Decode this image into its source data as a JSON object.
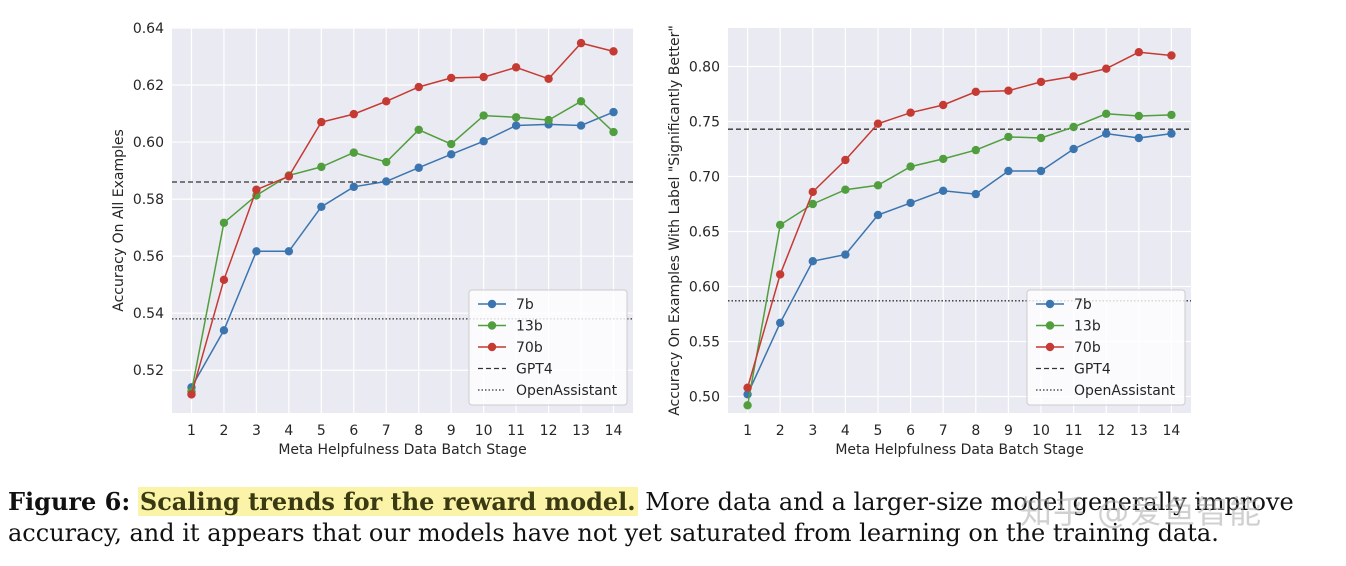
{
  "chart_data": [
    {
      "type": "line",
      "xlabel": "Meta Helpfulness Data Batch Stage",
      "ylabel": "Accuracy On All Examples",
      "x": [
        1,
        2,
        3,
        4,
        5,
        6,
        7,
        8,
        9,
        10,
        11,
        12,
        13,
        14
      ],
      "xlim": [
        0.4,
        14.6
      ],
      "ylim": [
        0.505,
        0.64
      ],
      "yticks": [
        0.52,
        0.54,
        0.56,
        0.58,
        0.6,
        0.62,
        0.64
      ],
      "ytick_labels": [
        "0.52",
        "0.54",
        "0.56",
        "0.58",
        "0.60",
        "0.62",
        "0.64"
      ],
      "grid": true,
      "legend": "lower-right",
      "series": [
        {
          "name": "7b",
          "color": "#3b75af",
          "values": [
            0.514,
            0.534,
            0.5617,
            0.5617,
            0.5773,
            0.5843,
            0.5862,
            0.591,
            0.5957,
            0.6003,
            0.6058,
            0.6062,
            0.6058,
            0.6105
          ]
        },
        {
          "name": "13b",
          "color": "#519e3e",
          "values": [
            0.5125,
            0.5717,
            0.5813,
            0.5883,
            0.5913,
            0.5963,
            0.593,
            0.6043,
            0.5993,
            0.6093,
            0.6087,
            0.6077,
            0.6143,
            0.6035
          ]
        },
        {
          "name": "70b",
          "color": "#c53a32",
          "values": [
            0.5115,
            0.5517,
            0.5833,
            0.588,
            0.607,
            0.6098,
            0.6143,
            0.6193,
            0.6225,
            0.6228,
            0.6262,
            0.6222,
            0.6347,
            0.6318
          ]
        }
      ],
      "reference_lines": [
        {
          "name": "GPT4",
          "style": "dashed",
          "value": 0.586
        },
        {
          "name": "OpenAssistant",
          "style": "dotted",
          "value": 0.538
        }
      ]
    },
    {
      "type": "line",
      "xlabel": "Meta Helpfulness Data Batch Stage",
      "ylabel": "Accuracy On Examples With Label \"Significantly Better\"",
      "x": [
        1,
        2,
        3,
        4,
        5,
        6,
        7,
        8,
        9,
        10,
        11,
        12,
        13,
        14
      ],
      "xlim": [
        0.4,
        14.6
      ],
      "ylim": [
        0.485,
        0.835
      ],
      "yticks": [
        0.5,
        0.55,
        0.6,
        0.65,
        0.7,
        0.75,
        0.8
      ],
      "ytick_labels": [
        "0.50",
        "0.55",
        "0.60",
        "0.65",
        "0.70",
        "0.75",
        "0.80"
      ],
      "grid": true,
      "legend": "lower-right",
      "series": [
        {
          "name": "7b",
          "color": "#3b75af",
          "values": [
            0.502,
            0.567,
            0.623,
            0.629,
            0.665,
            0.676,
            0.687,
            0.684,
            0.705,
            0.705,
            0.725,
            0.739,
            0.735,
            0.739
          ]
        },
        {
          "name": "13b",
          "color": "#519e3e",
          "values": [
            0.492,
            0.656,
            0.675,
            0.688,
            0.692,
            0.709,
            0.716,
            0.724,
            0.736,
            0.735,
            0.745,
            0.757,
            0.755,
            0.756
          ]
        },
        {
          "name": "70b",
          "color": "#c53a32",
          "values": [
            0.508,
            0.611,
            0.686,
            0.715,
            0.748,
            0.758,
            0.765,
            0.777,
            0.778,
            0.786,
            0.791,
            0.798,
            0.813,
            0.81
          ]
        }
      ],
      "reference_lines": [
        {
          "name": "GPT4",
          "style": "dashed",
          "value": 0.743
        },
        {
          "name": "OpenAssistant",
          "style": "dotted",
          "value": 0.587
        }
      ]
    }
  ],
  "caption": {
    "label": "Figure 6:",
    "highlight": "Scaling trends for the reward model.",
    "body": "More data and a larger-size model generally improve accuracy, and it appears that our models have not yet saturated from learning on the training data."
  },
  "watermark": "知乎 @爱鱼智能"
}
